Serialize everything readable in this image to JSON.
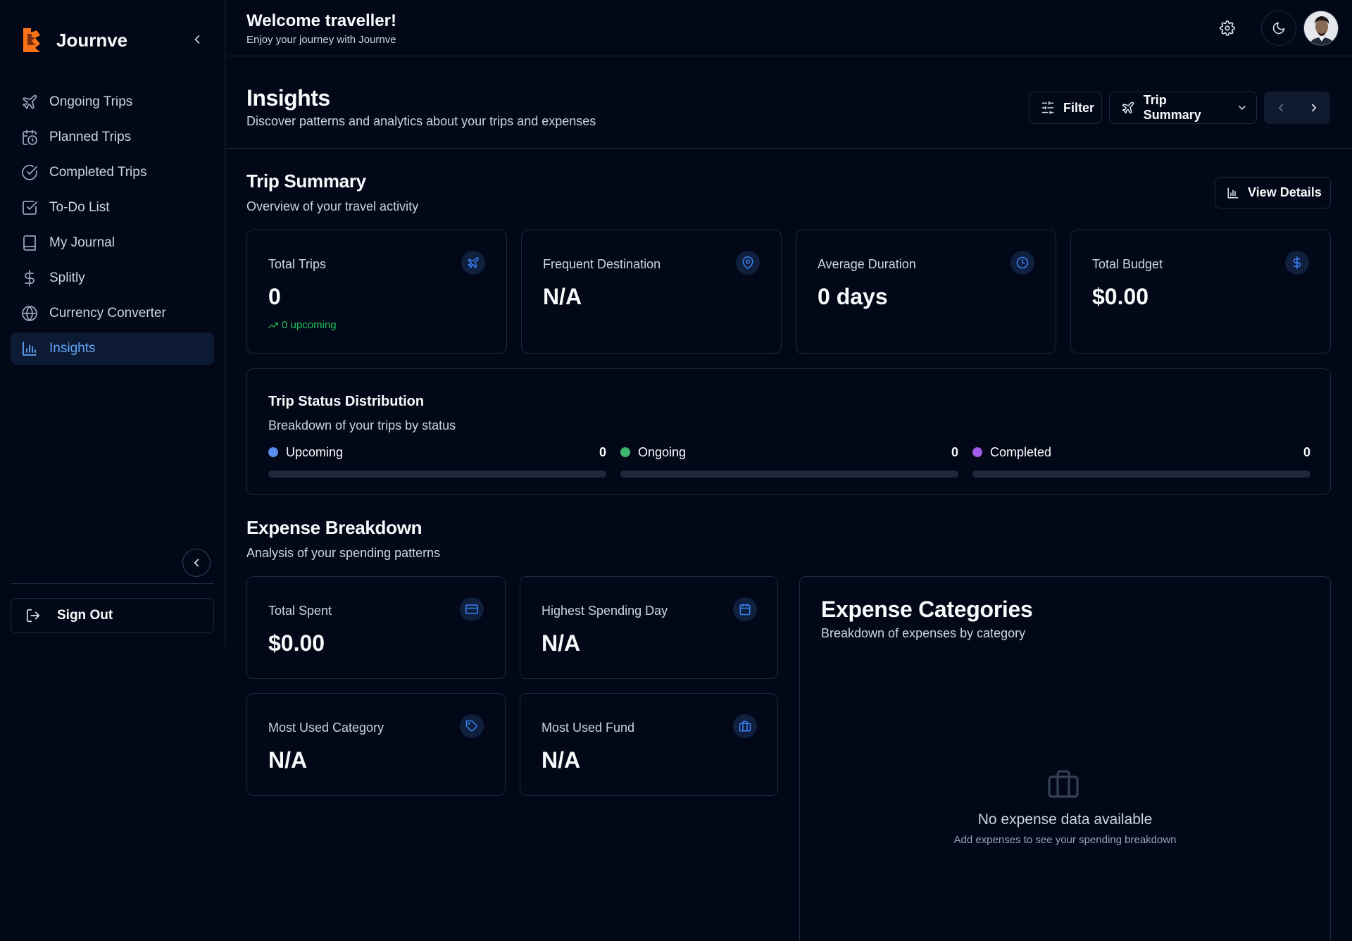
{
  "app": {
    "name": "Journve"
  },
  "sidebar": {
    "items": [
      {
        "label": "Ongoing Trips",
        "icon": "plane-icon"
      },
      {
        "label": "Planned Trips",
        "icon": "calendar-clock-icon"
      },
      {
        "label": "Completed Trips",
        "icon": "check-circle-icon"
      },
      {
        "label": "To-Do List",
        "icon": "check-square-icon"
      },
      {
        "label": "My Journal",
        "icon": "book-icon"
      },
      {
        "label": "Splitly",
        "icon": "dollar-icon"
      },
      {
        "label": "Currency Converter",
        "icon": "globe-icon"
      },
      {
        "label": "Insights",
        "icon": "bar-chart-icon",
        "active": true
      }
    ],
    "sign_out": "Sign Out"
  },
  "topbar": {
    "welcome": "Welcome traveller!",
    "welcome_sub": "Enjoy your journey with Journve"
  },
  "page": {
    "title": "Insights",
    "subtitle": "Discover patterns and analytics about your trips and expenses",
    "filter_label": "Filter",
    "view_select": "Trip Summary"
  },
  "trip_summary": {
    "title": "Trip Summary",
    "subtitle": "Overview of your travel activity",
    "view_details": "View Details",
    "stats": [
      {
        "label": "Total Trips",
        "value": "0",
        "extra": "0 upcoming",
        "icon": "plane-icon"
      },
      {
        "label": "Frequent Destination",
        "value": "N/A",
        "icon": "map-pin-icon"
      },
      {
        "label": "Average Duration",
        "value": "0 days",
        "icon": "clock-icon"
      },
      {
        "label": "Total Budget",
        "value": "$0.00",
        "icon": "dollar-icon"
      }
    ]
  },
  "status_distribution": {
    "title": "Trip Status Distribution",
    "subtitle": "Breakdown of your trips by status",
    "items": [
      {
        "label": "Upcoming",
        "count": "0",
        "color": "#5b8def",
        "fraction": 0
      },
      {
        "label": "Ongoing",
        "count": "0",
        "color": "#3fb56b",
        "fraction": 0
      },
      {
        "label": "Completed",
        "count": "0",
        "color": "#a15be6",
        "fraction": 0
      }
    ]
  },
  "expense_breakdown": {
    "title": "Expense Breakdown",
    "subtitle": "Analysis of your spending patterns",
    "stats": [
      {
        "label": "Total Spent",
        "value": "$0.00",
        "icon": "credit-card-icon"
      },
      {
        "label": "Highest Spending Day",
        "value": "N/A",
        "icon": "calendar-icon"
      },
      {
        "label": "Most Used Category",
        "value": "N/A",
        "icon": "tag-icon"
      },
      {
        "label": "Most Used Fund",
        "value": "N/A",
        "icon": "briefcase-icon"
      }
    ]
  },
  "expense_categories": {
    "title": "Expense Categories",
    "subtitle": "Breakdown of expenses by category",
    "empty_title": "No expense data available",
    "empty_sub": "Add expenses to see your spending breakdown"
  },
  "colors": {
    "background": "#020817",
    "border": "#1e293b",
    "accent": "#3b82f6",
    "active_nav_bg": "#0c1a33",
    "positive": "#22c55e",
    "brand_orange": "#f97316"
  }
}
